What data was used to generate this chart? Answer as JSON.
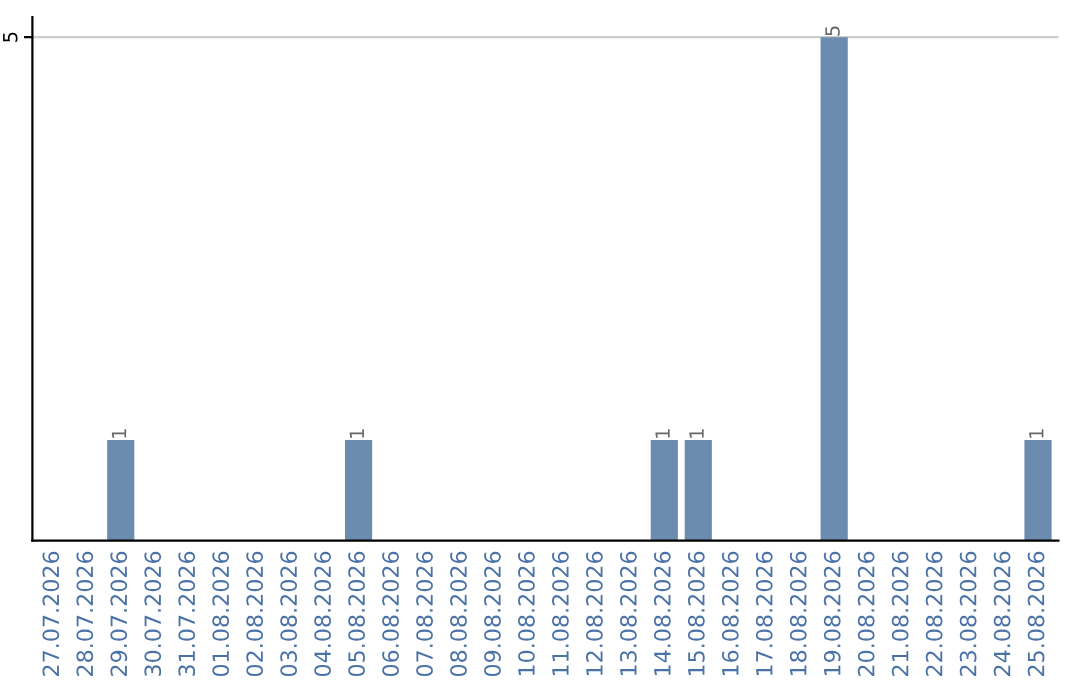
{
  "chart_data": {
    "type": "bar",
    "categories": [
      "27.07.2026",
      "28.07.2026",
      "29.07.2026",
      "30.07.2026",
      "31.07.2026",
      "01.08.2026",
      "02.08.2026",
      "03.08.2026",
      "04.08.2026",
      "05.08.2026",
      "06.08.2026",
      "07.08.2026",
      "08.08.2026",
      "09.08.2026",
      "10.08.2026",
      "11.08.2026",
      "12.08.2026",
      "13.08.2026",
      "14.08.2026",
      "15.08.2026",
      "16.08.2026",
      "17.08.2026",
      "18.08.2026",
      "19.08.2026",
      "20.08.2026",
      "21.08.2026",
      "22.08.2026",
      "23.08.2026",
      "24.08.2026",
      "25.08.2026"
    ],
    "values": [
      0,
      0,
      1,
      0,
      0,
      0,
      0,
      0,
      0,
      1,
      0,
      0,
      0,
      0,
      0,
      0,
      0,
      0,
      1,
      1,
      0,
      0,
      0,
      5,
      0,
      0,
      0,
      0,
      0,
      1
    ],
    "value_labels": [
      null,
      null,
      "1",
      null,
      null,
      null,
      null,
      null,
      null,
      "1",
      null,
      null,
      null,
      null,
      null,
      null,
      null,
      null,
      "1",
      "1",
      null,
      null,
      null,
      "5",
      null,
      null,
      null,
      null,
      null,
      "1"
    ],
    "color": "#6b8cae",
    "ylim": [
      0,
      5.2
    ],
    "yticks": [
      5
    ],
    "grid": "y"
  }
}
